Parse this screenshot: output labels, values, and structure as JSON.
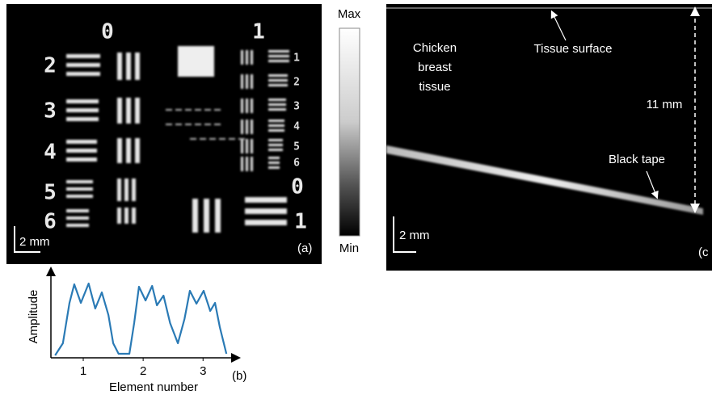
{
  "panel_a": {
    "group_labels": [
      "0",
      "1",
      "0"
    ],
    "left_element_labels": [
      "2",
      "3",
      "4",
      "5",
      "6"
    ],
    "right_element_labels": [
      "1",
      "2",
      "3",
      "4",
      "5",
      "6"
    ],
    "bottom_element_label": "1",
    "scale_bar": "2 mm",
    "panel_label": "(a)"
  },
  "colorbar": {
    "max_label": "Max",
    "min_label": "Min"
  },
  "chart_data": {
    "type": "line",
    "xlabel": "Element number",
    "ylabel": "Amplitude",
    "panel_label": "(b)",
    "x": [
      0.53,
      0.66,
      0.77,
      0.85,
      0.96,
      1.09,
      1.2,
      1.31,
      1.42,
      1.5,
      1.59,
      1.77,
      1.85,
      1.93,
      2.04,
      2.15,
      2.23,
      2.34,
      2.45,
      2.58,
      2.69,
      2.78,
      2.89,
      3.01,
      3.12,
      3.2,
      3.28,
      3.39
    ],
    "series": [
      {
        "name": "Amplitude",
        "color": "#2a7ab5",
        "values": [
          0.03,
          0.18,
          0.68,
          0.91,
          0.68,
          0.92,
          0.61,
          0.81,
          0.53,
          0.18,
          0.05,
          0.05,
          0.43,
          0.88,
          0.71,
          0.89,
          0.65,
          0.77,
          0.43,
          0.18,
          0.48,
          0.83,
          0.67,
          0.83,
          0.58,
          0.68,
          0.38,
          0.05
        ]
      }
    ],
    "xlim": [
      0.46,
      3.55
    ],
    "ylim": [
      0,
      1.03
    ],
    "xticks": [
      1,
      2,
      3
    ]
  },
  "panel_c": {
    "tissue_label": "Chicken breast tissue",
    "surface_label": "Tissue surface",
    "depth_label": "11 mm",
    "tape_label": "Black tape",
    "scale_bar": "2 mm",
    "panel_label": "(c"
  }
}
